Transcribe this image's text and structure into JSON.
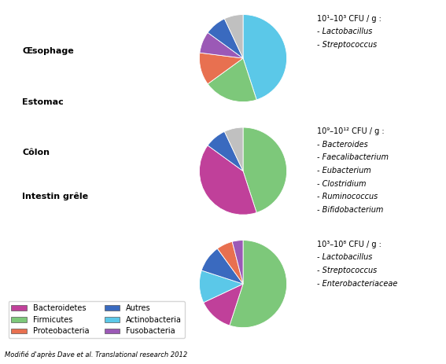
{
  "chart_data": [
    {
      "type": "pie",
      "title": "10¹–10³ CFU / g :",
      "values": [
        45,
        20,
        12,
        8,
        8,
        7
      ],
      "colors": [
        "#5bc8e8",
        "#7dc87a",
        "#e87050",
        "#9b59b6",
        "#3a6abf",
        "#c0c0c0"
      ],
      "annotations": [
        "- Lactobacillus",
        "- Streptococcus"
      ]
    },
    {
      "type": "pie",
      "title": "10⁹–10¹² CFU / g :",
      "values": [
        45,
        40,
        8,
        7
      ],
      "colors": [
        "#7dc87a",
        "#c0409a",
        "#3a6abf",
        "#c0c0c0"
      ],
      "annotations": [
        "- Bacteroides",
        "- Faecalibacterium",
        "- Eubacterium",
        "- Clostridium",
        "- Ruminococcus",
        "- Bifidobacterium"
      ]
    },
    {
      "type": "pie",
      "title": "10³–10⁸ CFU / g :",
      "values": [
        55,
        13,
        12,
        10,
        6,
        4
      ],
      "colors": [
        "#7dc87a",
        "#c0409a",
        "#5bc8e8",
        "#3a6abf",
        "#e87050",
        "#9b59b6"
      ],
      "annotations": [
        "- Lactobacillus",
        "- Streptococcus",
        "- Enterobacteriaceae"
      ]
    }
  ],
  "series": [
    {
      "name": "Bacteroidetes",
      "color": "#c0409a"
    },
    {
      "name": "Firmicutes",
      "color": "#7dc87a"
    },
    {
      "name": "Proteobacteria",
      "color": "#e87050"
    },
    {
      "name": "Autres",
      "color": "#3a6abf"
    },
    {
      "name": "Actinobacteria",
      "color": "#5bc8e8"
    },
    {
      "name": "Fusobacteria",
      "color": "#9b59b6"
    }
  ],
  "legend": "lower left",
  "annotations": [
    "Œsophage",
    "Estomac",
    "Côlon",
    "Intestin grêle"
  ],
  "caption": "Modifié d'après Dave et al. Translational research 2012"
}
